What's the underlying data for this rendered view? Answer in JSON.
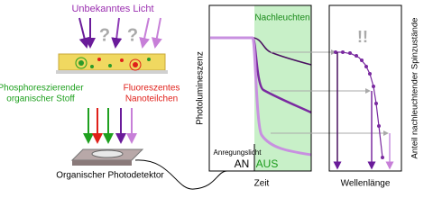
{
  "illustration": {
    "light_label": "Unbekanntes Licht",
    "question_marks": [
      "?",
      "?"
    ],
    "phosphor_label": [
      "Phosphoreszierender",
      "organischer Stoff"
    ],
    "nano_label": [
      "Fluoreszentes",
      "Nanoteilchen"
    ],
    "detector_label": "Organischer Photodetektor"
  },
  "time_plot": {
    "shade_label": "Nachleuchten",
    "y_label": "Photolumineszenz",
    "excitation_label": "Anregungslicht",
    "on_label": "AN",
    "off_label": "AUS",
    "x_label": "Zeit"
  },
  "spectrum_plot": {
    "marker": "!!",
    "x_label": "Wellenlänge",
    "y_label": "Anteil nachleuchtender Spinzustände"
  }
}
